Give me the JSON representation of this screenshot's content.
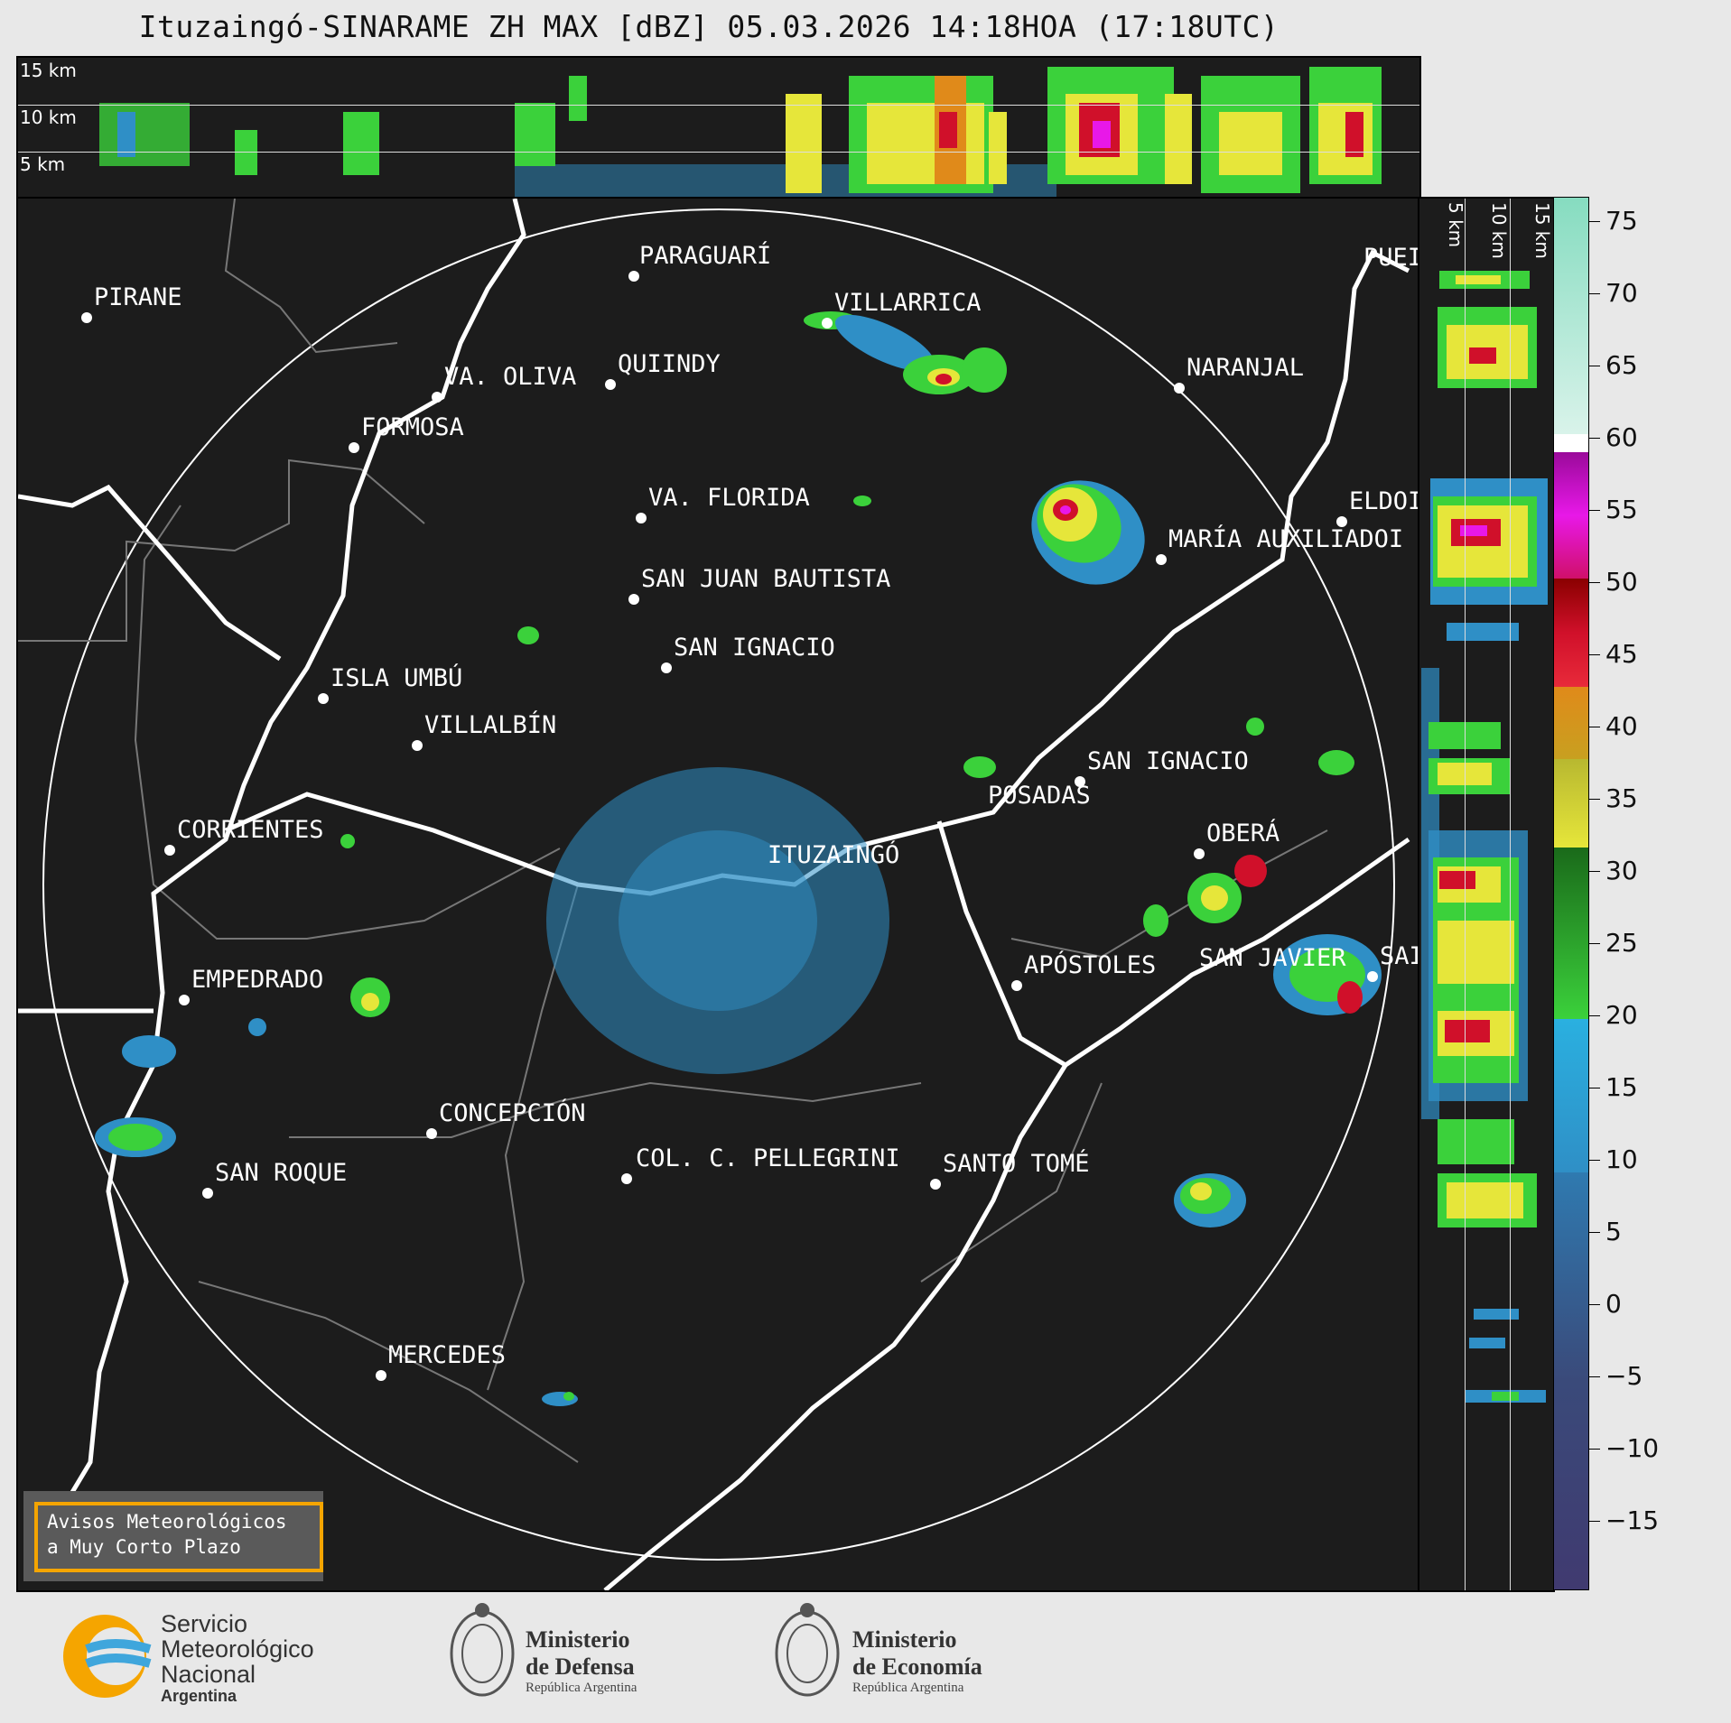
{
  "header": {
    "title": "Ituzaingó-SINARAME ZH MAX [dBZ] 05.03.2026 14:18HOA (17:18UTC)"
  },
  "top_profile": {
    "km_labels": [
      "15 km",
      "10 km",
      "5 km"
    ]
  },
  "side_profile": {
    "km_labels": [
      "5 km",
      "10 km",
      "15 km"
    ]
  },
  "cities": [
    {
      "name": "PARAGUARÍ"
    },
    {
      "name": "PIRANE"
    },
    {
      "name": "VILLARRICA"
    },
    {
      "name": "QUIINDY"
    },
    {
      "name": "VA. OLIVA"
    },
    {
      "name": "NARANJAL"
    },
    {
      "name": "FORMOSA"
    },
    {
      "name": "VA. FLORIDA"
    },
    {
      "name": "ELDOI"
    },
    {
      "name": "MARÍA AUXILIADOI"
    },
    {
      "name": "SAN JUAN BAUTISTA"
    },
    {
      "name": "SAN IGNACIO"
    },
    {
      "name": "ISLA UMBÚ"
    },
    {
      "name": "VILLALBÍN"
    },
    {
      "name": "SAN IGNACIO"
    },
    {
      "name": "POSADAS"
    },
    {
      "name": "CORRIENTES"
    },
    {
      "name": "ITUZAINGÓ"
    },
    {
      "name": "OBERÁ"
    },
    {
      "name": "APÓSTOLES"
    },
    {
      "name": "SAN JAVIER"
    },
    {
      "name": "SAI"
    },
    {
      "name": "EMPEDRADO"
    },
    {
      "name": "CONCEPCIÓN"
    },
    {
      "name": "COL. C. PELLEGRINI"
    },
    {
      "name": "SANTO TOMÉ"
    },
    {
      "name": "SAN ROQUE"
    },
    {
      "name": "MERCEDES"
    },
    {
      "name": "PUEI"
    }
  ],
  "colorbar": {
    "tick_labels": [
      "75",
      "70",
      "65",
      "60",
      "55",
      "50",
      "45",
      "40",
      "35",
      "30",
      "25",
      "20",
      "15",
      "10",
      "5",
      "0",
      "−5",
      "−10",
      "−15"
    ],
    "colors": {
      "clear": "#1c1c1c",
      "low": "#3a4a7a",
      "blue": "#2f8fc6",
      "green": "#3bd13b",
      "yellow": "#e6e63a",
      "orange": "#e08a1a",
      "red": "#d0102a",
      "magenta": "#e818e8",
      "white": "#ffffff",
      "aqua": "#86dcc0"
    }
  },
  "notice": {
    "line1": "Avisos Meteorológicos",
    "line2": "a Muy Corto Plazo"
  },
  "footer": {
    "smn_line1": "Servicio",
    "smn_line2": "Meteorológico",
    "smn_line3": "Nacional",
    "smn_line4": "Argentina",
    "defensa_line1": "Ministerio",
    "defensa_line2": "de Defensa",
    "defensa_line3": "República Argentina",
    "economia_line1": "Ministerio",
    "economia_line2": "de Economía",
    "economia_line3": "República Argentina"
  }
}
